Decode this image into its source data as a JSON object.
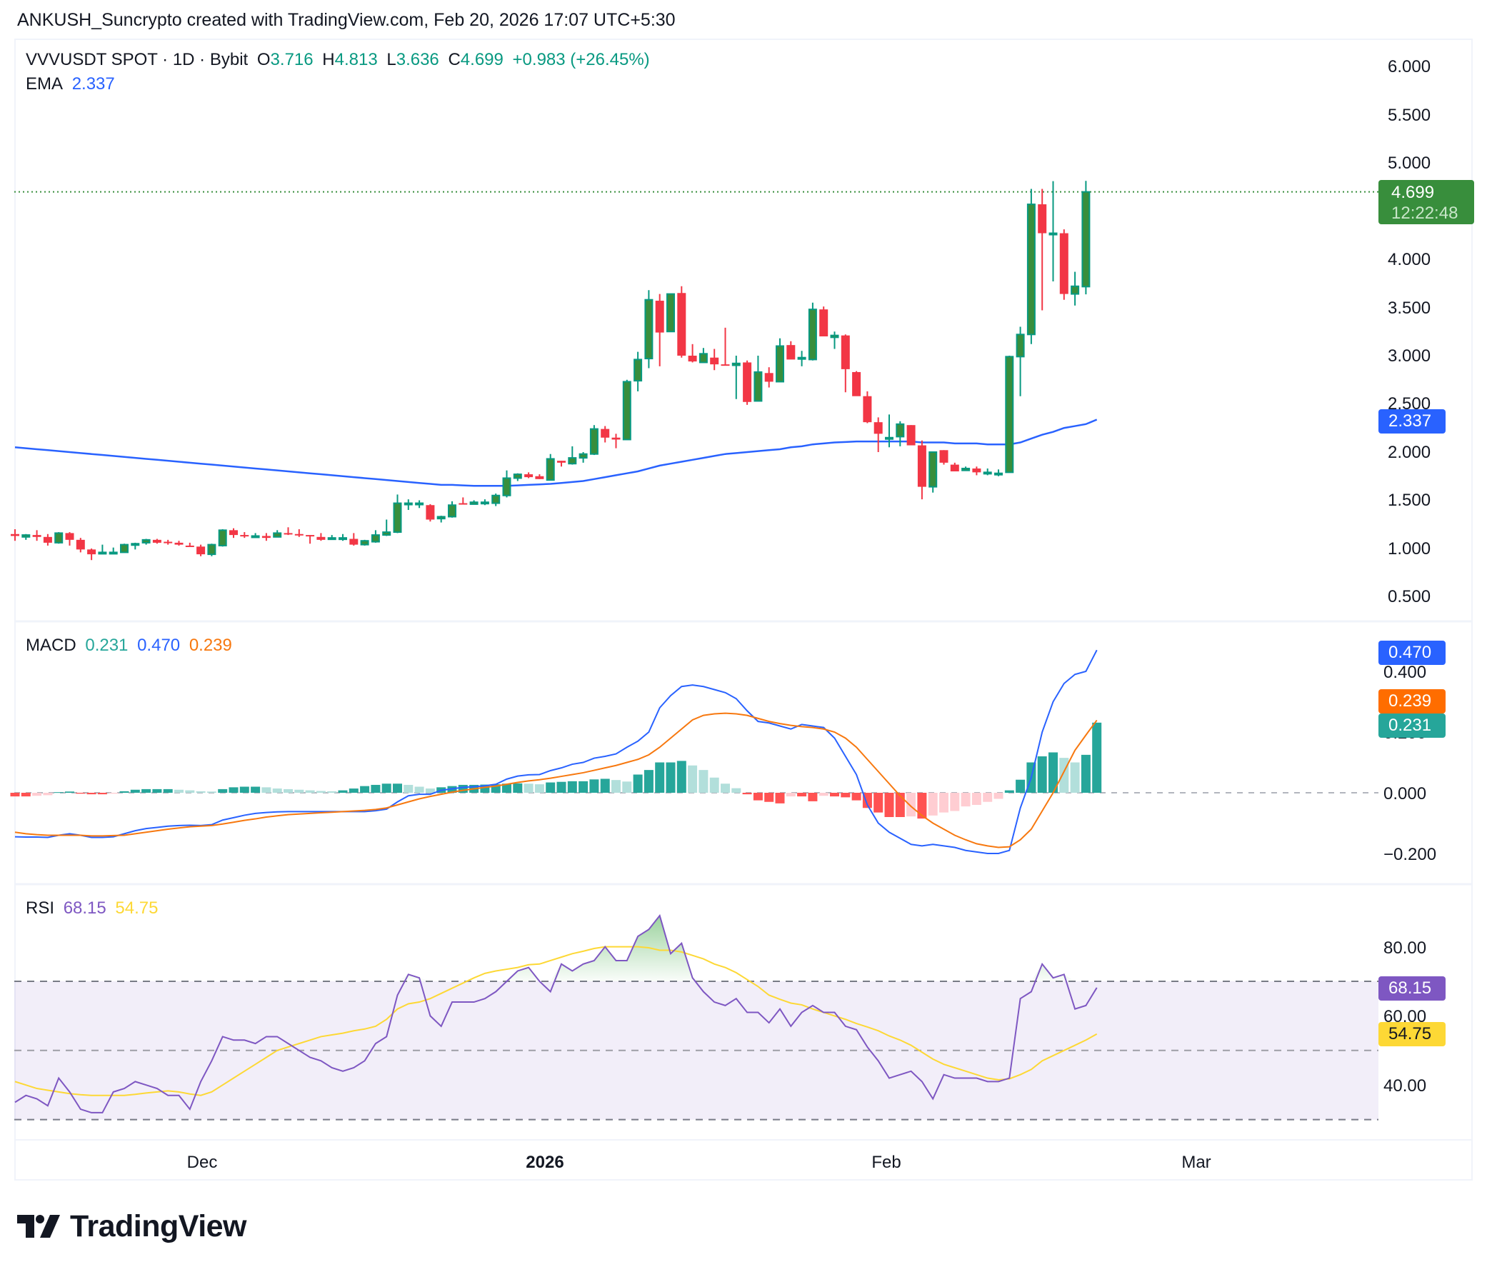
{
  "attribution": "ANKUSH_Suncrypto created with TradingView.com, Feb 20, 2026 17:07 UTC+5:30",
  "legend": {
    "symbol": "VVVUSDT SPOT · 1D · Bybit",
    "open_label": "O",
    "open": "3.716",
    "high_label": "H",
    "high": "4.813",
    "low_label": "L",
    "low": "3.636",
    "close_label": "C",
    "close": "4.699",
    "change": "+0.983 (+26.45%)",
    "ema_label": "EMA",
    "ema_value": "2.337"
  },
  "macd_legend": {
    "label": "MACD",
    "hist": "0.231",
    "macd": "0.470",
    "signal": "0.239"
  },
  "rsi_legend": {
    "label": "RSI",
    "rsi": "68.15",
    "rsi_ma": "54.75"
  },
  "price_axis": [
    "6.000",
    "5.500",
    "5.000",
    "4.000",
    "3.500",
    "3.000",
    "2.500",
    "2.000",
    "1.500",
    "1.000",
    "0.500"
  ],
  "price_tag": {
    "price": "4.699",
    "countdown": "12:22:48"
  },
  "ema_tag": "2.337",
  "macd_axis": [
    "0.400",
    "0.200",
    "0.000",
    "−0.200"
  ],
  "macd_tags": {
    "macd": "0.470",
    "signal": "0.239",
    "hist": "0.231"
  },
  "rsi_axis": [
    "80.00",
    "60.00",
    "40.00"
  ],
  "rsi_tags": {
    "rsi": "68.15",
    "rsi_ma": "54.75"
  },
  "time_axis": [
    {
      "label": "Dec",
      "x": 283,
      "bold": false
    },
    {
      "label": "2026",
      "x": 763,
      "bold": true
    },
    {
      "label": "Feb",
      "x": 1241,
      "bold": false
    },
    {
      "label": "Mar",
      "x": 1675,
      "bold": false
    }
  ],
  "logo_text": "TradingView",
  "colors": {
    "up_body": "#388e3c",
    "up_border": "#089981",
    "down": "#f23645",
    "ema": "#2962ff",
    "macd": "#2962ff",
    "signal": "#f7780f",
    "hist_up_strong": "#26a69a",
    "hist_up_weak": "#b2dfdb",
    "hist_down_strong": "#ff5252",
    "hist_down_weak": "#ffcdd2",
    "rsi": "#7e57c2",
    "rsi_ma": "#fdd835",
    "rsi_band": "#7e57c2"
  },
  "chart_data": {
    "type": "candlestick",
    "title": "VVVUSDT SPOT · 1D · Bybit",
    "x_ticks": [
      "Dec",
      "2026",
      "Feb",
      "Mar"
    ],
    "ylim": [
      0.3,
      6.2
    ],
    "last": {
      "open": 3.716,
      "high": 4.813,
      "low": 3.636,
      "close": 4.699,
      "change": 0.983,
      "change_pct": 26.45
    },
    "candles": [
      [
        1.15,
        1.2,
        1.08,
        1.13
      ],
      [
        1.12,
        1.15,
        1.09,
        1.14
      ],
      [
        1.14,
        1.19,
        1.08,
        1.12
      ],
      [
        1.12,
        1.15,
        1.03,
        1.06
      ],
      [
        1.06,
        1.17,
        1.05,
        1.16
      ],
      [
        1.16,
        1.17,
        1.03,
        1.09
      ],
      [
        1.09,
        1.11,
        0.96,
        0.99
      ],
      [
        0.99,
        1.0,
        0.88,
        0.94
      ],
      [
        0.95,
        1.04,
        0.94,
        0.96
      ],
      [
        0.96,
        1.01,
        0.95,
        0.96
      ],
      [
        0.96,
        1.05,
        0.96,
        1.04
      ],
      [
        1.04,
        1.06,
        0.99,
        1.05
      ],
      [
        1.06,
        1.1,
        1.04,
        1.09
      ],
      [
        1.09,
        1.1,
        1.05,
        1.06
      ],
      [
        1.07,
        1.09,
        1.04,
        1.06
      ],
      [
        1.06,
        1.08,
        1.03,
        1.04
      ],
      [
        1.03,
        1.06,
        1.02,
        1.02
      ],
      [
        1.02,
        1.04,
        0.92,
        0.94
      ],
      [
        0.94,
        1.05,
        0.92,
        1.04
      ],
      [
        1.03,
        1.2,
        1.02,
        1.19
      ],
      [
        1.19,
        1.21,
        1.11,
        1.14
      ],
      [
        1.14,
        1.17,
        1.11,
        1.13
      ],
      [
        1.13,
        1.16,
        1.12,
        1.13
      ],
      [
        1.13,
        1.16,
        1.08,
        1.11
      ],
      [
        1.12,
        1.19,
        1.12,
        1.16
      ],
      [
        1.16,
        1.22,
        1.14,
        1.15
      ],
      [
        1.15,
        1.2,
        1.12,
        1.14
      ],
      [
        1.14,
        1.14,
        1.05,
        1.13
      ],
      [
        1.12,
        1.16,
        1.08,
        1.09
      ],
      [
        1.1,
        1.14,
        1.1,
        1.11
      ],
      [
        1.11,
        1.15,
        1.08,
        1.11
      ],
      [
        1.1,
        1.16,
        1.03,
        1.04
      ],
      [
        1.04,
        1.09,
        1.03,
        1.08
      ],
      [
        1.07,
        1.19,
        1.06,
        1.14
      ],
      [
        1.14,
        1.3,
        1.13,
        1.17
      ],
      [
        1.17,
        1.56,
        1.16,
        1.47
      ],
      [
        1.47,
        1.51,
        1.4,
        1.47
      ],
      [
        1.47,
        1.5,
        1.42,
        1.47
      ],
      [
        1.45,
        1.46,
        1.28,
        1.3
      ],
      [
        1.31,
        1.34,
        1.27,
        1.33
      ],
      [
        1.33,
        1.49,
        1.32,
        1.45
      ],
      [
        1.47,
        1.53,
        1.46,
        1.46
      ],
      [
        1.46,
        1.5,
        1.46,
        1.48
      ],
      [
        1.47,
        1.51,
        1.45,
        1.48
      ],
      [
        1.47,
        1.57,
        1.44,
        1.55
      ],
      [
        1.55,
        1.81,
        1.53,
        1.73
      ],
      [
        1.73,
        1.78,
        1.7,
        1.77
      ],
      [
        1.77,
        1.79,
        1.73,
        1.74
      ],
      [
        1.75,
        1.77,
        1.72,
        1.72
      ],
      [
        1.71,
        1.98,
        1.71,
        1.93
      ],
      [
        1.91,
        1.91,
        1.85,
        1.89
      ],
      [
        1.88,
        2.06,
        1.87,
        1.94
      ],
      [
        1.94,
        2.0,
        1.89,
        1.98
      ],
      [
        1.98,
        2.28,
        1.97,
        2.24
      ],
      [
        2.24,
        2.27,
        2.1,
        2.15
      ],
      [
        2.15,
        2.19,
        2.04,
        2.13
      ],
      [
        2.13,
        2.75,
        2.14,
        2.73
      ],
      [
        2.74,
        3.04,
        2.63,
        2.96
      ],
      [
        2.97,
        3.68,
        2.87,
        3.58
      ],
      [
        3.57,
        3.64,
        2.89,
        3.24
      ],
      [
        3.25,
        3.58,
        3.25,
        3.64
      ],
      [
        3.65,
        3.72,
        2.98,
        3.0
      ],
      [
        3.0,
        3.12,
        2.93,
        2.94
      ],
      [
        2.93,
        3.08,
        2.97,
        3.02
      ],
      [
        2.98,
        3.07,
        2.85,
        2.91
      ],
      [
        2.91,
        3.29,
        2.9,
        2.9
      ],
      [
        2.9,
        3.0,
        2.55,
        2.92
      ],
      [
        2.93,
        2.95,
        2.49,
        2.52
      ],
      [
        2.53,
        3.0,
        2.54,
        2.83
      ],
      [
        2.82,
        2.88,
        2.67,
        2.73
      ],
      [
        2.73,
        3.18,
        2.73,
        3.1
      ],
      [
        3.11,
        3.15,
        2.97,
        2.96
      ],
      [
        2.98,
        3.05,
        2.89,
        2.98
      ],
      [
        2.96,
        3.55,
        2.95,
        3.48
      ],
      [
        3.48,
        3.51,
        3.2,
        3.2
      ],
      [
        3.19,
        3.25,
        3.07,
        3.21
      ],
      [
        3.21,
        3.22,
        2.62,
        2.86
      ],
      [
        2.83,
        2.84,
        2.74,
        2.58
      ],
      [
        2.58,
        2.63,
        2.3,
        2.31
      ],
      [
        2.31,
        2.36,
        2.0,
        2.19
      ],
      [
        2.14,
        2.39,
        2.05,
        2.15
      ],
      [
        2.16,
        2.32,
        2.06,
        2.29
      ],
      [
        2.28,
        2.28,
        2.08,
        2.07
      ],
      [
        2.07,
        2.12,
        1.51,
        1.64
      ],
      [
        1.64,
        2.0,
        1.58,
        2.0
      ],
      [
        2.02,
        2.02,
        1.87,
        1.89
      ],
      [
        1.87,
        1.89,
        1.81,
        1.8
      ],
      [
        1.81,
        1.85,
        1.82,
        1.83
      ],
      [
        1.83,
        1.85,
        1.76,
        1.79
      ],
      [
        1.79,
        1.83,
        1.76,
        1.79
      ],
      [
        1.78,
        1.82,
        1.75,
        1.78
      ],
      [
        1.79,
        3.0,
        1.79,
        2.99
      ],
      [
        2.99,
        3.3,
        2.58,
        3.22
      ],
      [
        3.22,
        4.73,
        3.12,
        4.57
      ],
      [
        4.57,
        4.73,
        3.47,
        4.27
      ],
      [
        4.27,
        4.81,
        3.77,
        4.27
      ],
      [
        4.27,
        4.31,
        3.58,
        3.64
      ],
      [
        3.64,
        3.87,
        3.52,
        3.72
      ],
      [
        3.716,
        4.813,
        3.636,
        4.699
      ]
    ],
    "ema": [
      2.05,
      2.04,
      2.03,
      2.02,
      2.01,
      2.0,
      1.99,
      1.98,
      1.97,
      1.96,
      1.95,
      1.94,
      1.93,
      1.92,
      1.91,
      1.9,
      1.89,
      1.88,
      1.87,
      1.86,
      1.85,
      1.84,
      1.83,
      1.82,
      1.81,
      1.8,
      1.79,
      1.78,
      1.77,
      1.76,
      1.75,
      1.74,
      1.73,
      1.72,
      1.71,
      1.7,
      1.69,
      1.68,
      1.67,
      1.66,
      1.66,
      1.655,
      1.65,
      1.65,
      1.65,
      1.65,
      1.655,
      1.66,
      1.665,
      1.67,
      1.68,
      1.69,
      1.7,
      1.72,
      1.74,
      1.76,
      1.78,
      1.8,
      1.83,
      1.86,
      1.88,
      1.9,
      1.92,
      1.94,
      1.96,
      1.98,
      1.99,
      2.0,
      2.01,
      2.02,
      2.03,
      2.05,
      2.06,
      2.08,
      2.09,
      2.1,
      2.105,
      2.11,
      2.11,
      2.11,
      2.11,
      2.11,
      2.11,
      2.1,
      2.1,
      2.1,
      2.09,
      2.09,
      2.09,
      2.08,
      2.08,
      2.08,
      2.1,
      2.14,
      2.18,
      2.21,
      2.25,
      2.27,
      2.29,
      2.337
    ],
    "macd": {
      "macd": [
        -0.145,
        -0.146,
        -0.146,
        -0.147,
        -0.14,
        -0.135,
        -0.14,
        -0.147,
        -0.147,
        -0.145,
        -0.135,
        -0.125,
        -0.118,
        -0.114,
        -0.11,
        -0.108,
        -0.107,
        -0.108,
        -0.105,
        -0.09,
        -0.082,
        -0.074,
        -0.068,
        -0.065,
        -0.063,
        -0.062,
        -0.062,
        -0.062,
        -0.062,
        -0.062,
        -0.062,
        -0.062,
        -0.062,
        -0.059,
        -0.054,
        -0.03,
        -0.01,
        -0.005,
        -0.005,
        0.008,
        0.013,
        0.018,
        0.02,
        0.023,
        0.028,
        0.045,
        0.055,
        0.059,
        0.06,
        0.073,
        0.082,
        0.094,
        0.1,
        0.114,
        0.12,
        0.128,
        0.15,
        0.17,
        0.2,
        0.28,
        0.32,
        0.35,
        0.355,
        0.35,
        0.34,
        0.33,
        0.31,
        0.27,
        0.235,
        0.23,
        0.22,
        0.21,
        0.225,
        0.22,
        0.215,
        0.18,
        0.12,
        0.06,
        -0.04,
        -0.1,
        -0.13,
        -0.15,
        -0.17,
        -0.175,
        -0.17,
        -0.175,
        -0.18,
        -0.19,
        -0.195,
        -0.2,
        -0.2,
        -0.19,
        -0.05,
        0.05,
        0.2,
        0.3,
        0.36,
        0.39,
        0.4,
        0.47
      ],
      "signal": [
        -0.13,
        -0.135,
        -0.138,
        -0.14,
        -0.14,
        -0.14,
        -0.14,
        -0.142,
        -0.142,
        -0.141,
        -0.14,
        -0.135,
        -0.13,
        -0.125,
        -0.12,
        -0.116,
        -0.112,
        -0.11,
        -0.108,
        -0.103,
        -0.097,
        -0.091,
        -0.086,
        -0.08,
        -0.076,
        -0.072,
        -0.07,
        -0.068,
        -0.066,
        -0.064,
        -0.062,
        -0.06,
        -0.058,
        -0.055,
        -0.05,
        -0.04,
        -0.03,
        -0.02,
        -0.012,
        -0.005,
        0.002,
        0.008,
        0.013,
        0.018,
        0.022,
        0.028,
        0.034,
        0.039,
        0.043,
        0.048,
        0.054,
        0.06,
        0.066,
        0.074,
        0.082,
        0.09,
        0.1,
        0.11,
        0.125,
        0.15,
        0.18,
        0.21,
        0.24,
        0.255,
        0.26,
        0.262,
        0.26,
        0.255,
        0.245,
        0.235,
        0.228,
        0.222,
        0.218,
        0.215,
        0.21,
        0.2,
        0.18,
        0.15,
        0.11,
        0.07,
        0.03,
        -0.01,
        -0.045,
        -0.075,
        -0.1,
        -0.12,
        -0.14,
        -0.155,
        -0.168,
        -0.175,
        -0.18,
        -0.178,
        -0.155,
        -0.12,
        -0.06,
        0.0,
        0.07,
        0.14,
        0.19,
        0.239
      ],
      "hist": [
        -0.012,
        -0.012,
        -0.01,
        -0.008,
        0.002,
        0.004,
        -0.003,
        -0.005,
        -0.005,
        -0.003,
        0.005,
        0.01,
        0.012,
        0.012,
        0.012,
        0.01,
        0.008,
        0.005,
        0.004,
        0.012,
        0.018,
        0.02,
        0.02,
        0.018,
        0.014,
        0.012,
        0.01,
        0.008,
        0.006,
        0.005,
        0.008,
        0.014,
        0.022,
        0.026,
        0.03,
        0.03,
        0.026,
        0.02,
        0.014,
        0.018,
        0.022,
        0.026,
        0.026,
        0.027,
        0.028,
        0.03,
        0.031,
        0.03,
        0.028,
        0.034,
        0.036,
        0.038,
        0.038,
        0.044,
        0.046,
        0.042,
        0.037,
        0.06,
        0.075,
        0.1,
        0.1,
        0.105,
        0.09,
        0.075,
        0.05,
        0.03,
        0.015,
        -0.005,
        -0.025,
        -0.03,
        -0.035,
        -0.012,
        -0.012,
        -0.028,
        -0.01,
        -0.012,
        -0.015,
        -0.025,
        -0.05,
        -0.065,
        -0.08,
        -0.08,
        -0.078,
        -0.085,
        -0.075,
        -0.065,
        -0.06,
        -0.045,
        -0.04,
        -0.03,
        -0.02,
        0.008,
        0.043,
        0.1,
        0.12,
        0.133,
        0.115,
        0.1,
        0.125,
        0.231
      ]
    },
    "rsi": {
      "rsi": [
        35,
        37,
        36,
        34,
        42,
        38,
        33,
        32,
        32,
        38,
        39,
        41,
        40,
        39,
        37,
        37,
        33,
        41,
        47,
        54,
        53,
        53,
        52,
        54,
        54,
        52,
        50,
        48,
        47,
        45,
        44,
        45,
        47,
        52,
        54,
        66,
        72,
        71,
        60,
        57,
        64,
        64,
        64,
        65,
        67,
        70,
        73,
        74,
        70,
        67,
        75,
        73,
        75,
        76,
        80,
        76,
        76,
        83,
        85,
        89,
        78,
        81,
        71,
        67,
        64,
        63,
        65,
        61,
        61,
        58,
        62,
        57,
        61,
        63,
        61,
        61,
        57,
        56,
        51,
        47,
        42,
        43,
        44,
        41,
        36,
        43,
        42,
        42,
        42,
        41,
        41,
        42,
        65,
        67,
        75,
        71,
        72,
        62,
        63,
        68.15
      ],
      "rsi_ma": [
        41,
        40,
        39,
        38.5,
        38,
        37.5,
        37.2,
        37,
        37,
        37,
        37,
        37.3,
        37.7,
        38,
        38.3,
        38,
        37.4,
        37,
        38,
        40,
        42,
        44,
        46,
        48,
        50,
        51,
        52,
        53,
        54,
        54.5,
        55,
        55.7,
        56.2,
        57,
        59,
        62,
        63.5,
        64,
        65,
        66.5,
        68,
        69.5,
        71,
        72.3,
        73,
        73.5,
        74,
        74.8,
        75,
        76,
        77,
        78,
        78.7,
        79.5,
        80,
        80,
        80,
        80,
        79.7,
        79,
        79,
        78.5,
        77.5,
        76.5,
        75,
        74,
        72.5,
        70.5,
        68.5,
        66,
        64.8,
        63.7,
        63.2,
        62,
        61,
        60,
        59,
        57.8,
        56.8,
        55.7,
        54.2,
        53,
        51.5,
        49.5,
        47.5,
        46,
        45,
        44,
        43,
        42,
        41.5,
        41.8,
        43,
        44.5,
        47,
        48.5,
        50,
        51.5,
        53,
        54.75
      ],
      "levels": [
        70,
        50,
        30
      ]
    }
  }
}
